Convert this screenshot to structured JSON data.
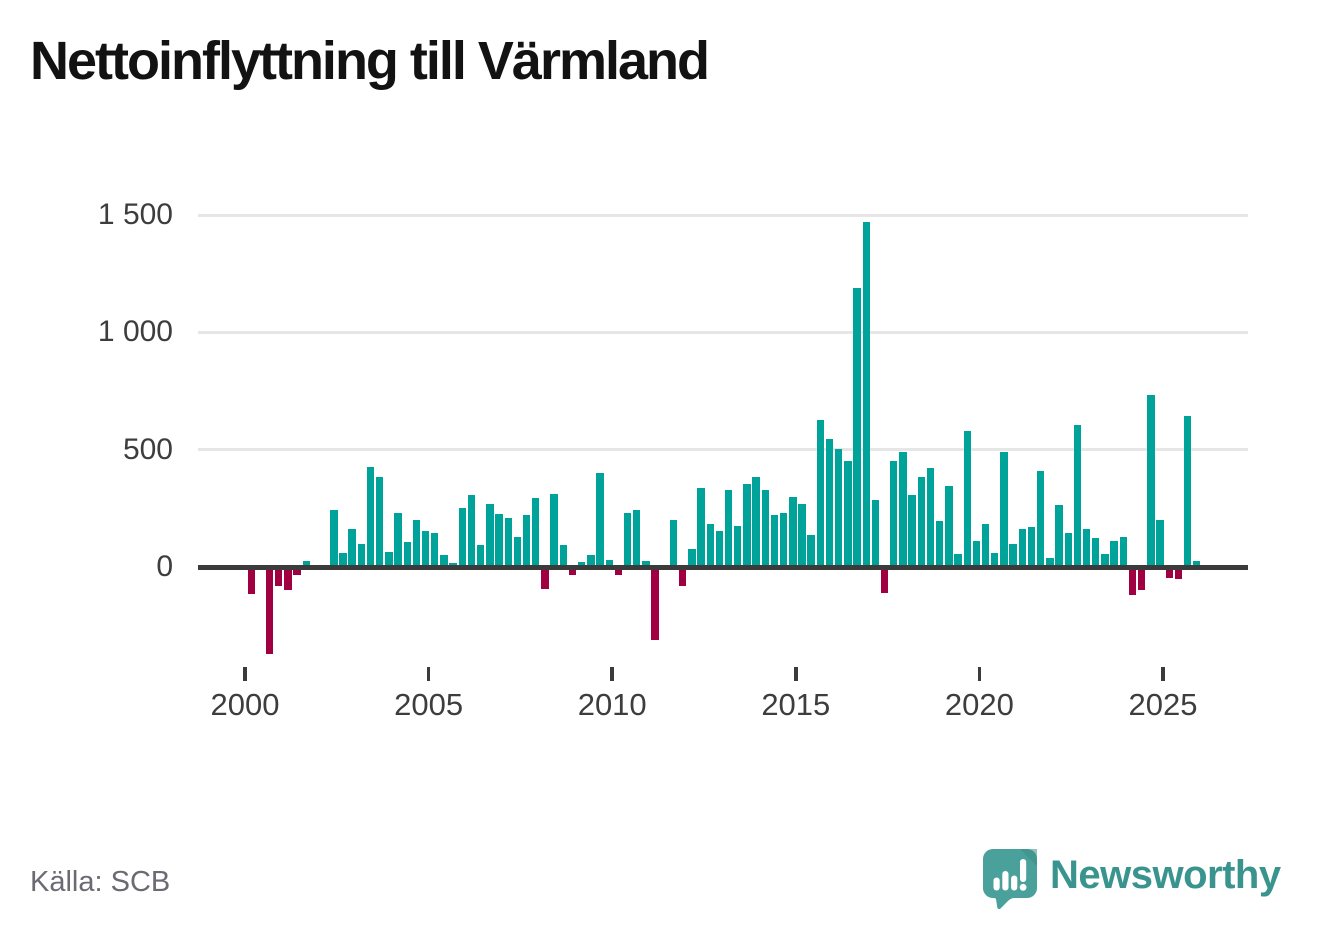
{
  "title": "Nettoinflyttning till Värmland",
  "source": "Källa: SCB",
  "logo": {
    "text": "Newsworthy",
    "icon": "newsworthy-speech-bubble-chart-icon"
  },
  "colors": {
    "positive_bar": "#00a39a",
    "negative_bar": "#a00041",
    "axis": "#3b3b3b",
    "grid": "#e6e6e6",
    "tick_label": "#3d3d3d",
    "title_text": "#121212",
    "source_text": "#6a6a73",
    "logo_teal": "#3a948e",
    "logo_icon_fill": "#4aa09b"
  },
  "chart_data": {
    "type": "bar",
    "title": "Nettoinflyttning till Värmland",
    "xlabel": "",
    "ylabel": "",
    "x_unit": "quarter",
    "start_year": 2000,
    "start_quarter": 1,
    "end_label": "2025 Q4",
    "grid": "horizontal",
    "legend": "none",
    "ylim": [
      -400,
      1600
    ],
    "yticks": [
      {
        "label": "1 500",
        "value": 1500
      },
      {
        "label": "1 000",
        "value": 1000
      },
      {
        "label": "500",
        "value": 500
      },
      {
        "label": "0",
        "value": 0
      }
    ],
    "xticks": [
      {
        "label": "2000",
        "year": 2000
      },
      {
        "label": "2005",
        "year": 2005
      },
      {
        "label": "2010",
        "year": 2010
      },
      {
        "label": "2015",
        "year": 2015
      },
      {
        "label": "2020",
        "year": 2020
      },
      {
        "label": "2025",
        "year": 2025
      }
    ],
    "values": [
      -115,
      0,
      -370,
      -80,
      -100,
      -35,
      25,
      0,
      0,
      245,
      60,
      160,
      100,
      425,
      385,
      65,
      230,
      105,
      200,
      155,
      145,
      50,
      15,
      250,
      305,
      95,
      270,
      225,
      210,
      130,
      220,
      295,
      -95,
      310,
      95,
      -35,
      20,
      50,
      400,
      30,
      -35,
      230,
      245,
      25,
      -310,
      10,
      200,
      -80,
      75,
      335,
      185,
      155,
      330,
      175,
      355,
      385,
      330,
      220,
      230,
      300,
      270,
      135,
      625,
      545,
      505,
      450,
      1190,
      1470,
      285,
      -110,
      450,
      490,
      305,
      385,
      420,
      195,
      345,
      55,
      580,
      110,
      185,
      60,
      490,
      100,
      160,
      170,
      410,
      40,
      265,
      145,
      605,
      160,
      125,
      55,
      110,
      130,
      -120,
      -100,
      735,
      200,
      -45,
      -50,
      645,
      25
    ]
  }
}
